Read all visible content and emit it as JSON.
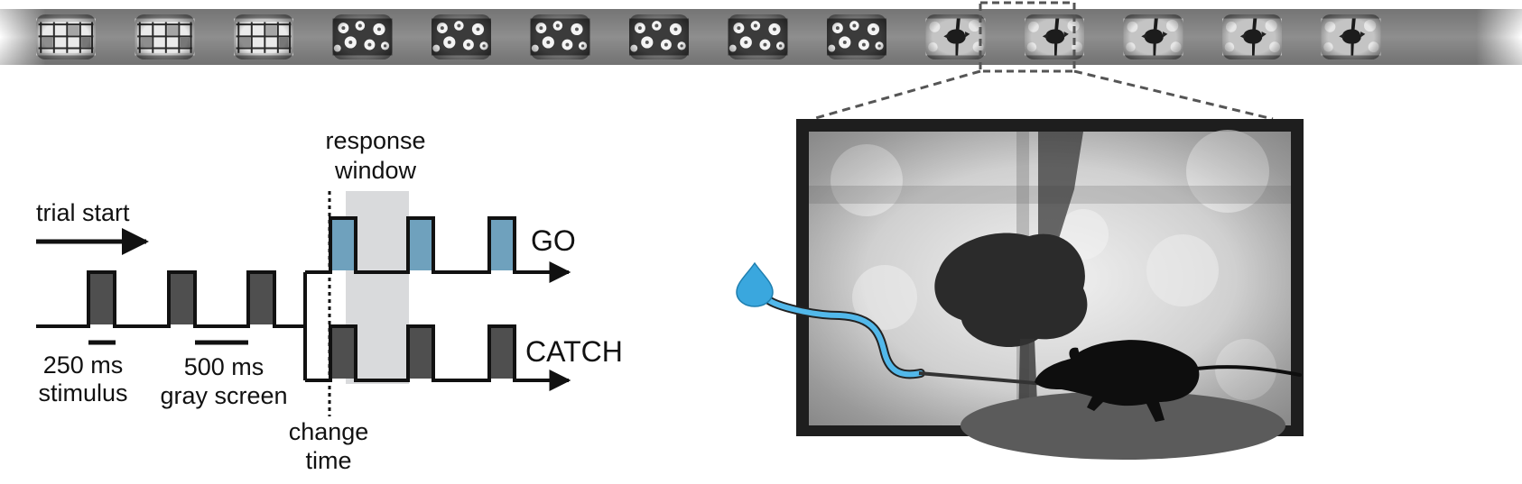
{
  "colors": {
    "go_pulse": "#6fa1bd",
    "catch_pulse": "#4f4f4f",
    "response_window": "#d9dadc",
    "water_drop": "#3aa7de",
    "tube": "#52b8ea",
    "platform": "#5b5b5b",
    "film_strip": "#8a8a8a",
    "line": "#111111"
  },
  "film_strip": {
    "frames": [
      {
        "image": "windows",
        "highlighted": false
      },
      {
        "image": "windows",
        "highlighted": false
      },
      {
        "image": "windows",
        "highlighted": false
      },
      {
        "image": "flowers",
        "highlighted": false
      },
      {
        "image": "flowers",
        "highlighted": false
      },
      {
        "image": "flowers",
        "highlighted": false
      },
      {
        "image": "flowers",
        "highlighted": false
      },
      {
        "image": "flowers",
        "highlighted": false
      },
      {
        "image": "flowers",
        "highlighted": false
      },
      {
        "image": "plant",
        "highlighted": true
      },
      {
        "image": "plant",
        "highlighted": false
      },
      {
        "image": "plant",
        "highlighted": false
      },
      {
        "image": "plant",
        "highlighted": false
      },
      {
        "image": "plant",
        "highlighted": false
      }
    ]
  },
  "timeline": {
    "trial_start_label": "trial start",
    "response_window_label_line1": "response",
    "response_window_label_line2": "window",
    "go_label": "GO",
    "catch_label": "CATCH",
    "stimulus_duration_label": "250 ms",
    "stimulus_label": "stimulus",
    "gray_duration_label": "500 ms",
    "gray_label": "gray screen",
    "change_time_line1": "change",
    "change_time_line2": "time",
    "pre_change_flashes": 3,
    "post_change_flashes": 3
  },
  "setup": {
    "monitor_image": "plant",
    "water_reward_icon": "water-drop-icon",
    "mouse_icon": "mouse-silhouette-icon"
  }
}
